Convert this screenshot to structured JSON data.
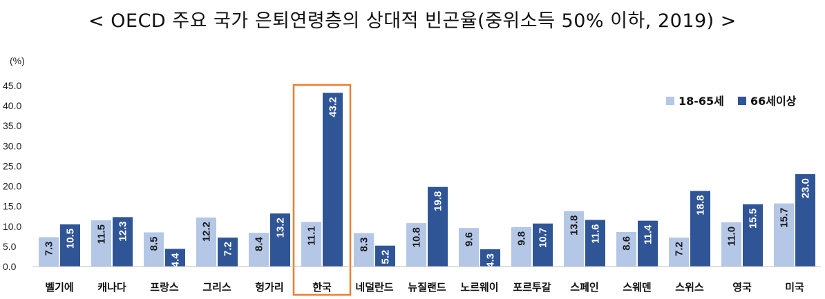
{
  "chart_data": {
    "type": "bar",
    "title": "< OECD 주요 국가 은퇴연령층의 상대적 빈곤율(중위소득 50% 이하, 2019) >",
    "ylabel": "(%)",
    "ylim": [
      0,
      45
    ],
    "yticks": [
      "0.0",
      "5.0",
      "10.0",
      "15.0",
      "20.0",
      "25.0",
      "30.0",
      "35.0",
      "40.0",
      "45.0"
    ],
    "categories": [
      "벨기에",
      "캐나다",
      "프랑스",
      "그리스",
      "헝가리",
      "한국",
      "네덜란드",
      "뉴질랜드",
      "노르웨이",
      "포르투갈",
      "스페인",
      "스웨덴",
      "스위스",
      "영국",
      "미국"
    ],
    "series": [
      {
        "name": "18-65세",
        "color": "#b4c7e7",
        "values": [
          7.3,
          11.5,
          8.5,
          12.2,
          8.4,
          11.1,
          8.3,
          10.8,
          9.6,
          9.8,
          13.8,
          8.6,
          7.2,
          11.0,
          15.7
        ],
        "labels": [
          "7.3",
          "11.5",
          "8.5",
          "12.2",
          "8.4",
          "11.1",
          "8.3",
          "10.8",
          "9.6",
          "9.8",
          "13.8",
          "8.6",
          "7.2",
          "11.0",
          "15.7"
        ]
      },
      {
        "name": "66세이상",
        "color": "#2f5597",
        "values": [
          10.5,
          12.3,
          4.4,
          7.2,
          13.2,
          43.2,
          5.2,
          19.8,
          4.3,
          10.7,
          11.6,
          11.4,
          18.8,
          15.5,
          23.0
        ],
        "labels": [
          "10.5",
          "12.3",
          "4.4",
          "7.2",
          "13.2",
          "43.2",
          "5.2",
          "19.8",
          "4.3",
          "10.7",
          "11.6",
          "11.4",
          "18.8",
          "15.5",
          "23.0"
        ]
      }
    ],
    "highlight": {
      "category": "한국",
      "color": "#ed7d31"
    },
    "legend_position": "top-right",
    "grid": false
  }
}
